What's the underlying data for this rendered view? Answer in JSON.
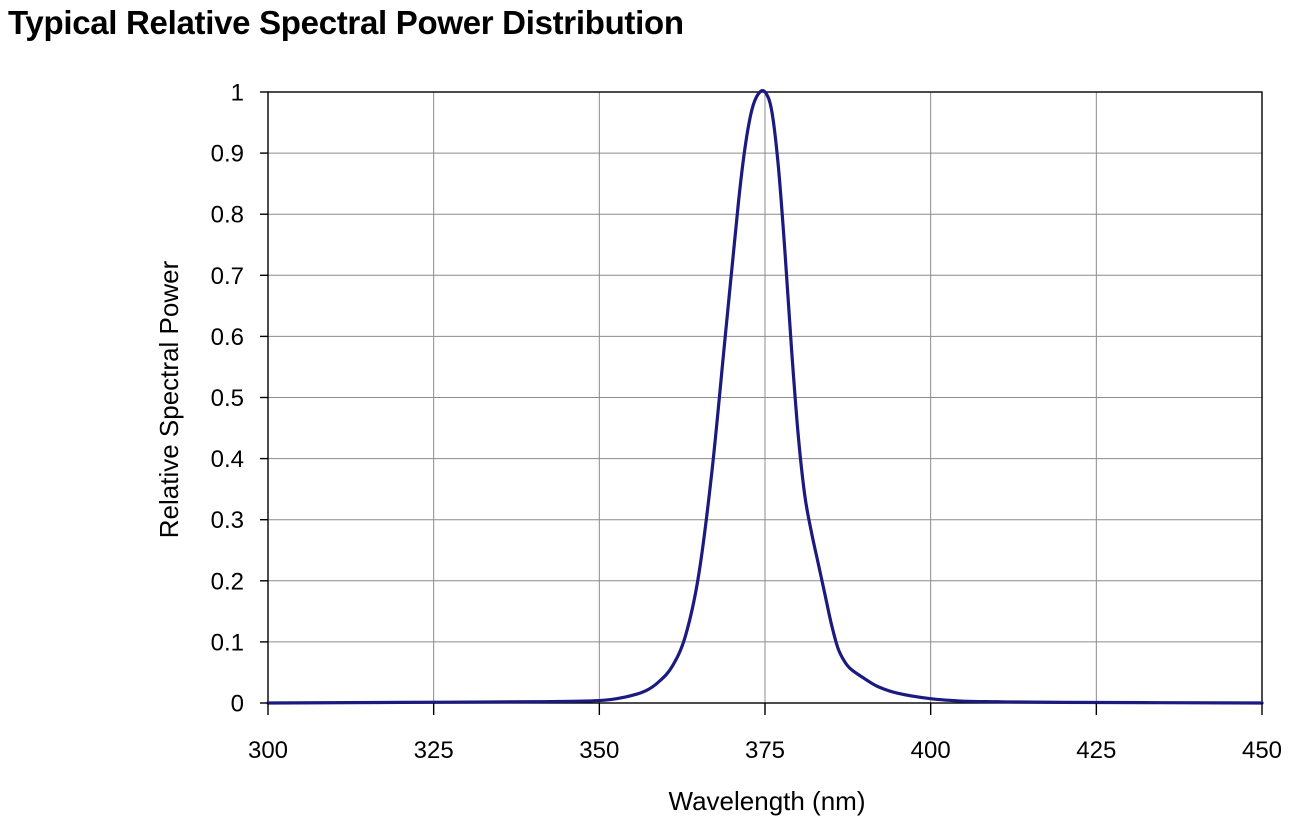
{
  "chart_data": {
    "type": "line",
    "title": "Typical Relative Spectral Power Distribution",
    "xlabel": "Wavelength (nm)",
    "ylabel": "Relative Spectral Power",
    "xlim": [
      300,
      450
    ],
    "ylim": [
      0,
      1
    ],
    "xticks": [
      300,
      325,
      350,
      375,
      400,
      425,
      450
    ],
    "yticks": [
      0,
      0.1,
      0.2,
      0.3,
      0.4,
      0.5,
      0.6,
      0.7,
      0.8,
      0.9,
      1
    ],
    "xtick_labels": [
      "300",
      "325",
      "350",
      "375",
      "400",
      "425",
      "450"
    ],
    "ytick_labels": [
      "0",
      "0.1",
      "0.2",
      "0.3",
      "0.4",
      "0.5",
      "0.6",
      "0.7",
      "0.8",
      "0.9",
      "1"
    ],
    "grid": true,
    "legend": "none",
    "series": [
      {
        "color": "#1a1a80",
        "x": [
          300,
          320,
          340,
          350,
          354,
          357,
          359,
          361,
          363,
          365,
          367,
          369,
          371,
          372,
          373,
          374,
          375,
          376,
          377,
          378,
          379,
          380,
          381,
          382,
          383,
          384,
          385,
          386,
          387,
          388,
          390,
          392,
          395,
          400,
          405,
          410,
          420,
          450
        ],
        "y": [
          0,
          0.001,
          0.002,
          0.004,
          0.01,
          0.02,
          0.035,
          0.06,
          0.11,
          0.21,
          0.38,
          0.6,
          0.82,
          0.91,
          0.97,
          0.997,
          1.0,
          0.97,
          0.88,
          0.74,
          0.58,
          0.44,
          0.34,
          0.28,
          0.23,
          0.18,
          0.13,
          0.09,
          0.068,
          0.055,
          0.04,
          0.027,
          0.016,
          0.007,
          0.003,
          0.002,
          0.001,
          0.0
        ]
      }
    ]
  }
}
